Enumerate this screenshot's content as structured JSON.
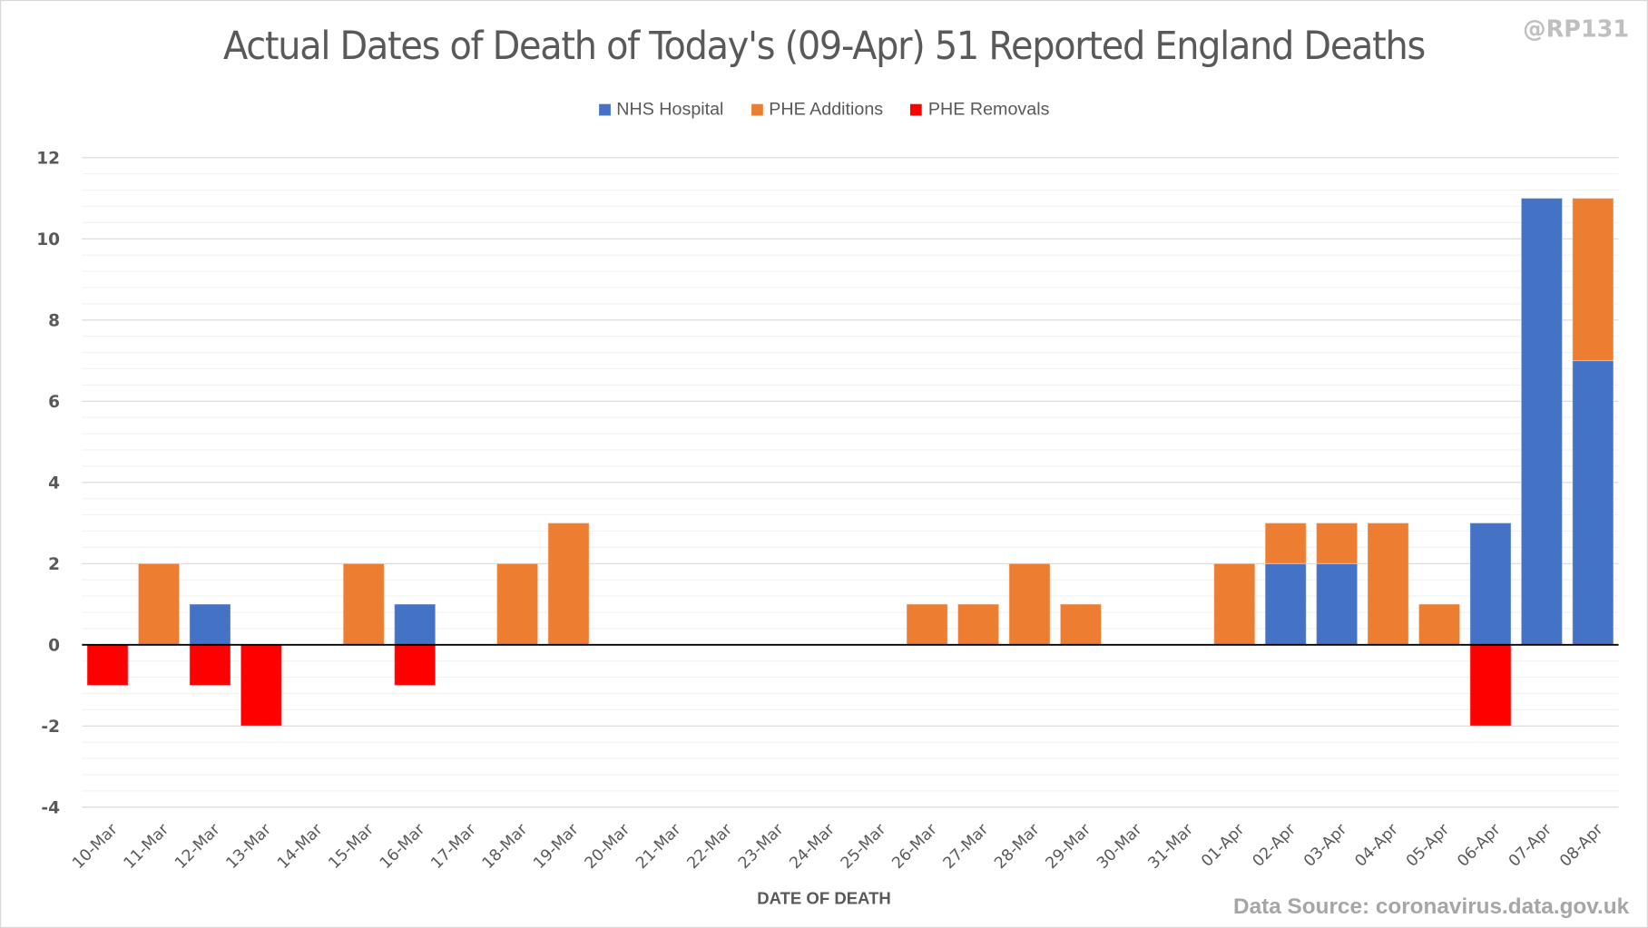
{
  "chart_data": {
    "type": "bar",
    "stacked": true,
    "title": "Actual Dates of Death of Today's (09-Apr) 51 Reported England Deaths",
    "watermark": "@RP131",
    "xlabel": "DATE OF DEATH",
    "ylabel": "",
    "source": "Data Source: coronavirus.data.gov.uk",
    "ylim": [
      -4,
      12
    ],
    "yticks": [
      12,
      10,
      8,
      6,
      4,
      2,
      0,
      -2,
      -4
    ],
    "grid": true,
    "legend_position": "top-center",
    "categories": [
      "10-Mar",
      "11-Mar",
      "12-Mar",
      "13-Mar",
      "14-Mar",
      "15-Mar",
      "16-Mar",
      "17-Mar",
      "18-Mar",
      "19-Mar",
      "20-Mar",
      "21-Mar",
      "22-Mar",
      "23-Mar",
      "24-Mar",
      "25-Mar",
      "26-Mar",
      "27-Mar",
      "28-Mar",
      "29-Mar",
      "30-Mar",
      "31-Mar",
      "01-Apr",
      "02-Apr",
      "03-Apr",
      "04-Apr",
      "05-Apr",
      "06-Apr",
      "07-Apr",
      "08-Apr"
    ],
    "series": [
      {
        "name": "NHS Hospital",
        "color": "#4472c4",
        "values": [
          0,
          0,
          1,
          0,
          0,
          0,
          1,
          0,
          0,
          0,
          0,
          0,
          0,
          0,
          0,
          0,
          0,
          0,
          0,
          0,
          0,
          0,
          0,
          2,
          2,
          0,
          0,
          3,
          11,
          7
        ]
      },
      {
        "name": "PHE Additions",
        "color": "#ed7d31",
        "values": [
          0,
          2,
          0,
          0,
          0,
          2,
          0,
          0,
          2,
          3,
          0,
          0,
          0,
          0,
          0,
          0,
          1,
          1,
          2,
          1,
          0,
          0,
          2,
          1,
          1,
          3,
          1,
          0,
          0,
          4
        ]
      },
      {
        "name": "PHE Removals",
        "color": "#ff0000",
        "values": [
          -1,
          0,
          -1,
          -2,
          0,
          0,
          -1,
          0,
          0,
          0,
          0,
          0,
          0,
          0,
          0,
          0,
          0,
          0,
          0,
          0,
          0,
          0,
          0,
          0,
          0,
          0,
          0,
          -2,
          0,
          0
        ]
      }
    ]
  }
}
